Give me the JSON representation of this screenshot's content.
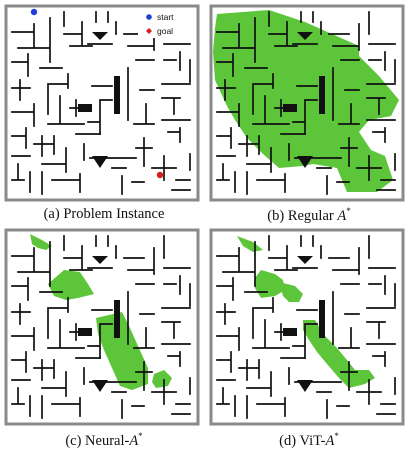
{
  "figure": {
    "legend": {
      "start_label": "start",
      "goal_label": "goal"
    },
    "colors": {
      "wall": "#111111",
      "frame": "#8a8a8a",
      "explored": "#5cc53a",
      "start": "#1f3fd8",
      "goal": "#d81f1f"
    },
    "panels": [
      {
        "label": "(a)",
        "name": "Problem Instance",
        "name_prefix": "",
        "name_italic": "",
        "name_sup": ""
      },
      {
        "label": "(b)",
        "name": "Regular",
        "name_prefix": "Regular ",
        "name_italic": "A",
        "name_sup": "*"
      },
      {
        "label": "(c)",
        "name": "Neural-A*",
        "name_prefix": "Neural-",
        "name_italic": "A",
        "name_sup": "*"
      },
      {
        "label": "(d)",
        "name": "ViT-A*",
        "name_prefix": "ViT-",
        "name_italic": "A",
        "name_sup": "*"
      }
    ]
  }
}
